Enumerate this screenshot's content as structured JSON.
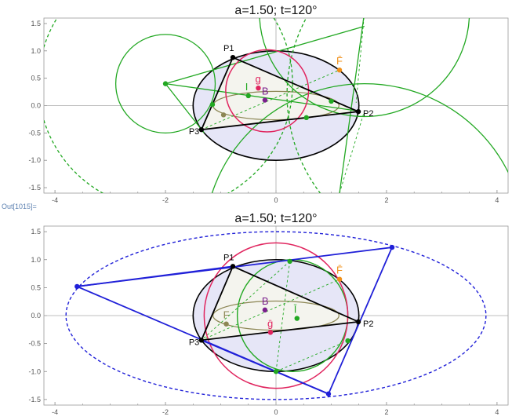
{
  "notebook": {
    "out_label": "Out[1015]="
  },
  "chart_data": [
    {
      "type": "scatter",
      "title": "a=1.50; t=120°",
      "xlim": [
        -4.2,
        4.2
      ],
      "ylim": [
        -1.6,
        1.6
      ],
      "x_ticks": [
        "-4",
        "-2",
        "0",
        "2",
        "4"
      ],
      "y_ticks": [
        "1.5",
        "1.0",
        "0.5",
        "0.0",
        "-0.5",
        "-1.0",
        "-1.5"
      ],
      "grid": false,
      "colors": {
        "ellipse": "#000000",
        "ellipse_fill": "#e6e6f7",
        "circumcircle": "#e0245e",
        "green": "#22a822",
        "caustic": "#8c8654",
        "brocard": "#7a1f8c",
        "orange": "#f0901a",
        "axis": "#aaaaaa"
      },
      "ellipse": {
        "a": 1.5,
        "b": 1.0
      },
      "caustic": {
        "a": 1.14,
        "b": 0.26
      },
      "triangle": [
        [
          -0.78,
          0.88
        ],
        [
          1.49,
          -0.11
        ],
        [
          -1.35,
          -0.44
        ]
      ],
      "circumcircle": {
        "cx": -0.16,
        "cy": 0.27,
        "r": 0.75
      },
      "big_circles": [
        [
          -2.0,
          0.4,
          0.9
        ],
        [
          -2.0,
          0.4,
          2.3
        ],
        [
          1.6,
          1.7,
          1.9
        ],
        [
          1.6,
          -2.5,
          2.9
        ],
        [
          3.2,
          0.2,
          3.0
        ]
      ],
      "green_lines": [
        [
          [
            -2.0,
            0.4
          ],
          [
            -1.3,
            -0.5
          ]
        ],
        [
          [
            -2.0,
            0.4
          ],
          [
            1.6,
            1.45
          ]
        ],
        [
          [
            -2.0,
            0.4
          ],
          [
            1.5,
            -0.1
          ]
        ],
        [
          [
            1.6,
            1.7
          ],
          [
            1.15,
            -1.6
          ]
        ]
      ],
      "dashed_lines": [
        [
          [
            -1.35,
            -0.44
          ],
          [
            1.15,
            0.65
          ]
        ],
        [
          [
            -0.78,
            0.88
          ],
          [
            1.49,
            -0.11
          ]
        ],
        [
          [
            1.6,
            1.7
          ],
          [
            1.45,
            0.05
          ]
        ],
        [
          [
            1.15,
            -1.6
          ],
          [
            1.6,
            -0.1
          ]
        ]
      ],
      "points": [
        {
          "label": "P1",
          "x": -0.78,
          "y": 0.88,
          "color": "#000000"
        },
        {
          "label": "P2",
          "x": 1.49,
          "y": -0.11,
          "color": "#000000"
        },
        {
          "label": "P3",
          "x": -1.35,
          "y": -0.44,
          "color": "#000000"
        },
        {
          "label": "F̄",
          "x": 1.15,
          "y": 0.65,
          "color": "#f0901a"
        },
        {
          "label": "g",
          "x": -0.32,
          "y": 0.32,
          "color": "#e0245e"
        },
        {
          "label": "B",
          "x": -0.2,
          "y": 0.1,
          "color": "#7a1f8c"
        },
        {
          "label": "I",
          "x": -0.5,
          "y": 0.18,
          "color": "#22a822"
        },
        {
          "label": "",
          "x": -2.0,
          "y": 0.4,
          "color": "#22a822"
        },
        {
          "label": "",
          "x": -1.15,
          "y": 0.02,
          "color": "#22a822"
        },
        {
          "label": "",
          "x": 1.0,
          "y": 0.08,
          "color": "#22a822"
        },
        {
          "label": "",
          "x": 0.55,
          "y": -0.22,
          "color": "#22a822"
        },
        {
          "label": "",
          "x": -0.95,
          "y": -0.17,
          "color": "#8c8654"
        }
      ]
    },
    {
      "type": "scatter",
      "title": "a=1.50; t=120°",
      "xlim": [
        -4.2,
        4.2
      ],
      "ylim": [
        -1.6,
        1.6
      ],
      "x_ticks": [
        "-4",
        "-2",
        "0",
        "2",
        "4"
      ],
      "y_ticks": [
        "1.5",
        "1.0",
        "0.5",
        "0.0",
        "-0.5",
        "-1.0",
        "-1.5"
      ],
      "grid": false,
      "colors": {
        "ellipse": "#000000",
        "ellipse_fill": "#e6e6f7",
        "circumcircle": "#e0245e",
        "green": "#22a822",
        "caustic": "#8c8654",
        "brocard": "#7a1f8c",
        "orange": "#f0901a",
        "blue": "#2020d8",
        "axis": "#aaaaaa"
      },
      "ellipse": {
        "a": 1.5,
        "b": 1.0
      },
      "caustic": {
        "a": 1.14,
        "b": 0.26
      },
      "triangle": [
        [
          -0.78,
          0.88
        ],
        [
          1.49,
          -0.11
        ],
        [
          -1.35,
          -0.44
        ]
      ],
      "circumcircle": {
        "cx": 0.0,
        "cy": 0.0,
        "r": 1.3
      },
      "green_circle": {
        "cx": 0.3,
        "cy": 0.0,
        "r": 1.0
      },
      "outer_dashed": {
        "cx": 0.0,
        "cy": 0.0,
        "rx": 3.8,
        "ry": 1.5
      },
      "blue_polygon": [
        [
          -3.6,
          0.52
        ],
        [
          2.1,
          1.22
        ],
        [
          0.95,
          -1.4
        ]
      ],
      "blue_lines": [
        [
          [
            -1.35,
            -0.44
          ],
          [
            0.95,
            -1.4
          ]
        ],
        [
          [
            -0.78,
            0.88
          ],
          [
            -3.6,
            0.52
          ]
        ]
      ],
      "dashed_lines": [
        [
          [
            -1.35,
            -0.44
          ],
          [
            1.15,
            0.65
          ]
        ],
        [
          [
            0.25,
            0.97
          ],
          [
            0.0,
            -1.0
          ]
        ],
        [
          [
            0.25,
            0.97
          ],
          [
            -1.35,
            -0.44
          ]
        ],
        [
          [
            1.3,
            -0.45
          ],
          [
            0.0,
            -1.0
          ]
        ]
      ],
      "points": [
        {
          "label": "P1",
          "x": -0.78,
          "y": 0.88,
          "color": "#000000"
        },
        {
          "label": "P2",
          "x": 1.49,
          "y": -0.11,
          "color": "#000000"
        },
        {
          "label": "P3",
          "x": -1.35,
          "y": -0.44,
          "color": "#000000"
        },
        {
          "label": "F̄",
          "x": 1.15,
          "y": 0.65,
          "color": "#f0901a"
        },
        {
          "label": "F",
          "x": -0.9,
          "y": -0.15,
          "color": "#8c8654"
        },
        {
          "label": "B",
          "x": -0.2,
          "y": 0.1,
          "color": "#7a1f8c"
        },
        {
          "label": "ḡ",
          "x": -0.1,
          "y": -0.3,
          "color": "#e0245e"
        },
        {
          "label": "Ī",
          "x": 0.38,
          "y": -0.05,
          "color": "#22a822"
        },
        {
          "label": "",
          "x": -3.6,
          "y": 0.52,
          "color": "#2020d8"
        },
        {
          "label": "",
          "x": 2.1,
          "y": 1.22,
          "color": "#2020d8"
        },
        {
          "label": "",
          "x": 0.95,
          "y": -1.4,
          "color": "#2020d8"
        },
        {
          "label": "",
          "x": 0.25,
          "y": 0.97,
          "color": "#22a822"
        },
        {
          "label": "",
          "x": 0.0,
          "y": -1.0,
          "color": "#22a822"
        },
        {
          "label": "",
          "x": 1.3,
          "y": -0.45,
          "color": "#22a822"
        }
      ]
    }
  ]
}
